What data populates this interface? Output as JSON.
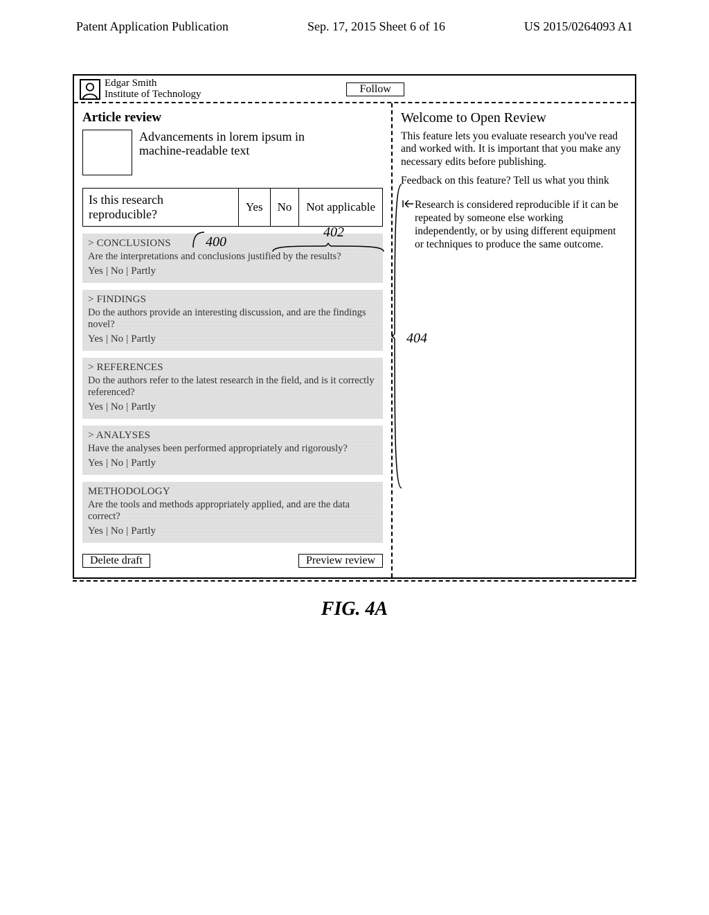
{
  "header": {
    "left": "Patent Application Publication",
    "center": "Sep. 17, 2015  Sheet 6 of 16",
    "right": "US 2015/0264093 A1"
  },
  "user": {
    "name": "Edgar Smith",
    "affiliation": "Institute of Technology",
    "follow_label": "Follow"
  },
  "article": {
    "heading": "Article review",
    "title_line1": "Advancements in lorem ipsum in",
    "title_line2": "machine-readable text"
  },
  "main_question": {
    "text": "Is this research reproducible?",
    "opts": [
      "Yes",
      "No",
      "Not applicable"
    ]
  },
  "sections": [
    {
      "label": "> CONCLUSIONS",
      "question": "Are the interpretations and conclusions justified by the results?",
      "opts": [
        "Yes",
        "No",
        "Partly"
      ]
    },
    {
      "label": "> FINDINGS",
      "question": "Do the authors provide an interesting discussion, and are the findings novel?",
      "opts": [
        "Yes",
        "No",
        "Partly"
      ]
    },
    {
      "label": "> REFERENCES",
      "question": "Do the authors refer to the latest research in the field, and is it correctly referenced?",
      "opts": [
        "Yes",
        "No",
        "Partly"
      ]
    },
    {
      "label": "> ANALYSES",
      "question": "Have the analyses been performed appropriately and rigorously?",
      "opts": [
        "Yes",
        "No",
        "Partly"
      ]
    },
    {
      "label": "METHODOLOGY",
      "question": "Are the tools and methods appropriately applied, and are the data correct?",
      "opts": [
        "Yes",
        "No",
        "Partly"
      ]
    }
  ],
  "buttons": {
    "delete": "Delete draft",
    "preview": "Preview review"
  },
  "right": {
    "welcome_h": "Welcome to Open Review",
    "p1": "This feature lets you evaluate research you've read and worked with. It is important that you make any necessary edits before publishing.",
    "p2": "Feedback on this feature? Tell us what you think",
    "tip": "Research is considered reproducible if it can be repeated by someone else working independently, or by using different equipment or techniques to produce the same outcome."
  },
  "annotations": {
    "a400": "400",
    "a402": "402",
    "a404": "404"
  },
  "caption": "FIG. 4A"
}
